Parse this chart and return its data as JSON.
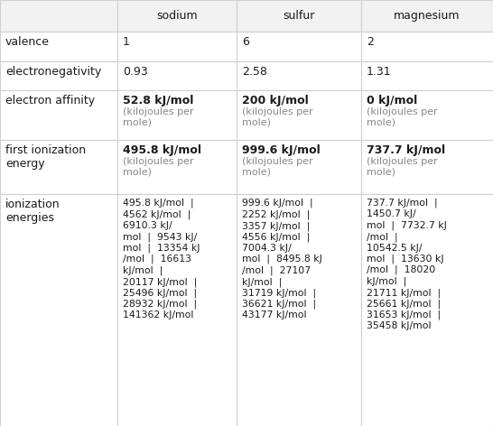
{
  "col_headers": [
    "",
    "sodium",
    "sulfur",
    "magnesium"
  ],
  "rows": [
    {
      "label": "valence",
      "sodium": "1",
      "sulfur": "6",
      "magnesium": "2"
    },
    {
      "label": "electronegativity",
      "sodium": "0.93",
      "sulfur": "2.58",
      "magnesium": "1.31"
    },
    {
      "label": "electron affinity",
      "sodium_bold": "52.8 kJ/mol",
      "sodium_sub": "(kilojoules per\nmole)",
      "sulfur_bold": "200 kJ/mol",
      "sulfur_sub": "(kilojoules per\nmole)",
      "magnesium_bold": "0 kJ/mol",
      "magnesium_sub": "(kilojoules per\nmole)"
    },
    {
      "label": "first ionization\nenergy",
      "sodium_bold": "495.8 kJ/mol",
      "sodium_sub": "(kilojoules per\nmole)",
      "sulfur_bold": "999.6 kJ/mol",
      "sulfur_sub": "(kilojoules per\nmole)",
      "magnesium_bold": "737.7 kJ/mol",
      "magnesium_sub": "(kilojoules per\nmole)"
    },
    {
      "label": "ionization\nenergies",
      "sodium": "495.8 kJ/mol  |\n4562 kJ/mol  |\n6910.3 kJ/\nmol  |  9543 kJ/\nmol  |  13354 kJ\n/mol  |  16613\nkJ/mol  |\n20117 kJ/mol  |\n25496 kJ/mol  |\n28932 kJ/mol  |\n141362 kJ/mol",
      "sulfur": "999.6 kJ/mol  |\n2252 kJ/mol  |\n3357 kJ/mol  |\n4556 kJ/mol  |\n7004.3 kJ/\nmol  |  8495.8 kJ\n/mol  |  27107\nkJ/mol  |\n31719 kJ/mol  |\n36621 kJ/mol  |\n43177 kJ/mol",
      "magnesium": "737.7 kJ/mol  |\n1450.7 kJ/\nmol  |  7732.7 kJ\n/mol  |\n10542.5 kJ/\nmol  |  13630 kJ\n/mol  |  18020\nkJ/mol  |\n21711 kJ/mol  |\n25661 kJ/mol  |\n31653 kJ/mol  |\n35458 kJ/mol"
    }
  ],
  "background_color": "#ffffff",
  "header_bg": "#f2f2f2",
  "label_bg": "#ffffff",
  "data_bg": "#ffffff",
  "border_color": "#d0d0d0",
  "text_color": "#1a1a1a",
  "subtext_color": "#888888",
  "font_size_header": 9.0,
  "font_size_label": 9.0,
  "font_size_value": 9.0,
  "font_size_bold": 9.0,
  "font_size_subtext": 8.0,
  "font_size_ion": 7.8
}
